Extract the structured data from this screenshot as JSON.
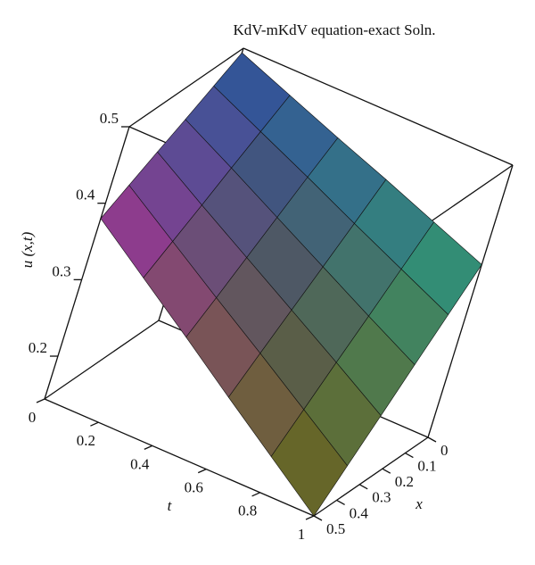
{
  "chart_data": {
    "type": "surface",
    "title": "KdV-mKdV equation-exact Soln.",
    "xlabel": "x",
    "tlabel": "t",
    "zlabel": "u (x,t)",
    "t": [
      0,
      0.2,
      0.4,
      0.6,
      0.8,
      1
    ],
    "x": [
      0,
      0.1,
      0.2,
      0.3,
      0.4,
      0.5
    ],
    "z": [
      [
        0.494,
        0.471,
        0.448,
        0.426,
        0.403,
        0.38
      ],
      [
        0.469,
        0.442,
        0.415,
        0.387,
        0.36,
        0.333
      ],
      [
        0.444,
        0.413,
        0.381,
        0.349,
        0.317,
        0.286
      ],
      [
        0.42,
        0.383,
        0.347,
        0.311,
        0.275,
        0.238
      ],
      [
        0.395,
        0.354,
        0.313,
        0.273,
        0.232,
        0.191
      ],
      [
        0.37,
        0.325,
        0.28,
        0.234,
        0.189,
        0.144
      ]
    ],
    "tlim": [
      0,
      1
    ],
    "tticks": [
      0,
      0.2,
      0.4,
      0.6,
      0.8,
      1
    ],
    "xlim": [
      0,
      0.5
    ],
    "xticks": [
      0,
      0.1,
      0.2,
      0.3,
      0.4,
      0.5
    ],
    "zlim": [
      0.144,
      0.5
    ],
    "zticks": [
      0.2,
      0.3,
      0.4,
      0.5
    ],
    "corner_colors": [
      "#3a6fd0",
      "#a0309a",
      "#2a9a7a",
      "#8a8a20"
    ]
  }
}
